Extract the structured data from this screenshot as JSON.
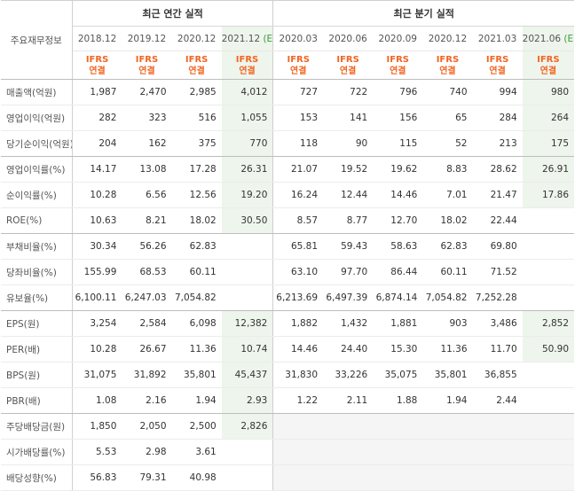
{
  "header": {
    "row_label": "주요재무정보",
    "annual_title": "최근 연간 실적",
    "quarter_title": "최근 분기 실적",
    "annual_periods": [
      "2018.12",
      "2019.12",
      "2020.12",
      "2021.12 (E)"
    ],
    "quarter_periods": [
      "2020.03",
      "2020.06",
      "2020.09",
      "2020.12",
      "2021.03",
      "2021.06 (E)"
    ],
    "ifrs_line1": "IFRS",
    "ifrs_line2": "연결"
  },
  "colors": {
    "estimate_bg": "#eef5ec",
    "empty_bg": "#f5f5f5",
    "ifrs": "#f26522",
    "estimate_tag": "#3a9b3a"
  },
  "rows": [
    {
      "label": "매출액(억원)",
      "annual": [
        "1,987",
        "2,470",
        "2,985",
        "4,012"
      ],
      "quarter": [
        "727",
        "722",
        "796",
        "740",
        "994",
        "980"
      ]
    },
    {
      "label": "영업이익(억원)",
      "annual": [
        "282",
        "323",
        "516",
        "1,055"
      ],
      "quarter": [
        "153",
        "141",
        "156",
        "65",
        "284",
        "264"
      ]
    },
    {
      "label": "당기순이익(억원)",
      "annual": [
        "204",
        "162",
        "375",
        "770"
      ],
      "quarter": [
        "118",
        "90",
        "115",
        "52",
        "213",
        "175"
      ]
    },
    {
      "label": "영업이익률(%)",
      "annual": [
        "14.17",
        "13.08",
        "17.28",
        "26.31"
      ],
      "quarter": [
        "21.07",
        "19.52",
        "19.62",
        "8.83",
        "28.62",
        "26.91"
      ]
    },
    {
      "label": "순이익률(%)",
      "annual": [
        "10.28",
        "6.56",
        "12.56",
        "19.20"
      ],
      "quarter": [
        "16.24",
        "12.44",
        "14.46",
        "7.01",
        "21.47",
        "17.86"
      ]
    },
    {
      "label": "ROE(%)",
      "annual": [
        "10.63",
        "8.21",
        "18.02",
        "30.50"
      ],
      "quarter": [
        "8.57",
        "8.77",
        "12.70",
        "18.02",
        "22.44",
        ""
      ]
    },
    {
      "label": "부채비율(%)",
      "annual": [
        "30.34",
        "56.26",
        "62.83",
        ""
      ],
      "quarter": [
        "65.81",
        "59.43",
        "58.63",
        "62.83",
        "69.80",
        ""
      ]
    },
    {
      "label": "당좌비율(%)",
      "annual": [
        "155.99",
        "68.53",
        "60.11",
        ""
      ],
      "quarter": [
        "63.10",
        "97.70",
        "86.44",
        "60.11",
        "71.52",
        ""
      ]
    },
    {
      "label": "유보율(%)",
      "annual": [
        "6,100.11",
        "6,247.03",
        "7,054.82",
        ""
      ],
      "quarter": [
        "6,213.69",
        "6,497.39",
        "6,874.14",
        "7,054.82",
        "7,252.28",
        ""
      ]
    },
    {
      "label": "EPS(원)",
      "annual": [
        "3,254",
        "2,584",
        "6,098",
        "12,382"
      ],
      "quarter": [
        "1,882",
        "1,432",
        "1,881",
        "903",
        "3,486",
        "2,852"
      ]
    },
    {
      "label": "PER(배)",
      "annual": [
        "10.28",
        "26.67",
        "11.36",
        "10.74"
      ],
      "quarter": [
        "14.46",
        "24.40",
        "15.30",
        "11.36",
        "11.70",
        "50.90"
      ]
    },
    {
      "label": "BPS(원)",
      "annual": [
        "31,075",
        "31,892",
        "35,801",
        "45,437"
      ],
      "quarter": [
        "31,830",
        "33,226",
        "35,075",
        "35,801",
        "36,855",
        ""
      ]
    },
    {
      "label": "PBR(배)",
      "annual": [
        "1.08",
        "2.16",
        "1.94",
        "2.93"
      ],
      "quarter": [
        "1.22",
        "2.11",
        "1.88",
        "1.94",
        "2.44",
        ""
      ]
    },
    {
      "label": "주당배당금(원)",
      "annual": [
        "1,850",
        "2,050",
        "2,500",
        "2,826"
      ],
      "quarter": [
        "",
        "",
        "",
        "",
        "",
        ""
      ]
    },
    {
      "label": "시가배당률(%)",
      "annual": [
        "5.53",
        "2.98",
        "3.61",
        ""
      ],
      "quarter": [
        "",
        "",
        "",
        "",
        "",
        ""
      ]
    },
    {
      "label": "배당성향(%)",
      "annual": [
        "56.83",
        "79.31",
        "40.98",
        ""
      ],
      "quarter": [
        "",
        "",
        "",
        "",
        "",
        ""
      ]
    }
  ]
}
